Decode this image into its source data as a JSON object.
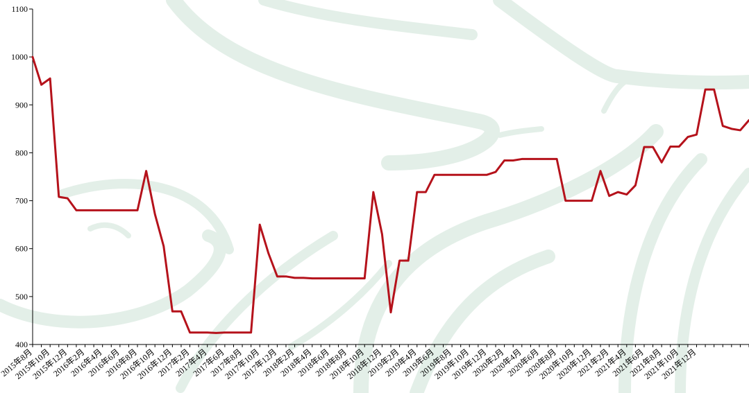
{
  "chart_data": {
    "type": "line",
    "title": "",
    "xlabel": "",
    "ylabel": "",
    "ylim": [
      400,
      1100
    ],
    "yticks": [
      400,
      500,
      600,
      700,
      800,
      900,
      1000,
      1100
    ],
    "grid": false,
    "legend": "none",
    "x_tick_labels": [
      "2015年8月",
      "2015年10月",
      "2015年12月",
      "2016年2月",
      "2016年4月",
      "2016年6月",
      "2016年8月",
      "2016年10月",
      "2016年12月",
      "2017年2月",
      "2017年4月",
      "2017年6月",
      "2017年8月",
      "2017年10月",
      "2017年12月",
      "2018年2月",
      "2018年4月",
      "2018年6月",
      "2018年8月",
      "2018年10月",
      "2018年12月",
      "2019年2月",
      "2019年4月",
      "2019年6月",
      "2019年8月",
      "2019年10月",
      "2019年12月",
      "2020年2月",
      "2020年4月",
      "2020年6月",
      "2020年8月",
      "2020年10月",
      "2020年12月",
      "2021年2月",
      "2021年4月",
      "2021年6月",
      "2021年8月",
      "2021年10月",
      "2021年12月"
    ],
    "series": [
      {
        "color": "#b5121b",
        "values": [
          1000,
          942,
          955,
          708,
          705,
          680,
          680,
          680,
          680,
          680,
          680,
          680,
          680,
          762,
          672,
          605,
          469,
          469,
          425,
          425,
          425,
          424,
          425,
          425,
          425,
          425,
          650,
          590,
          542,
          542,
          539,
          539,
          538,
          538,
          538,
          538,
          538,
          538,
          538,
          718,
          630,
          467,
          575,
          575,
          718,
          718,
          754,
          754,
          754,
          754,
          754,
          754,
          754,
          760,
          784,
          784,
          787,
          787,
          787,
          787,
          787,
          700,
          700,
          700,
          700,
          762,
          710,
          718,
          713,
          732,
          812,
          812,
          780,
          813,
          813,
          833,
          838,
          932,
          932,
          856,
          850,
          847,
          868
        ]
      }
    ]
  }
}
